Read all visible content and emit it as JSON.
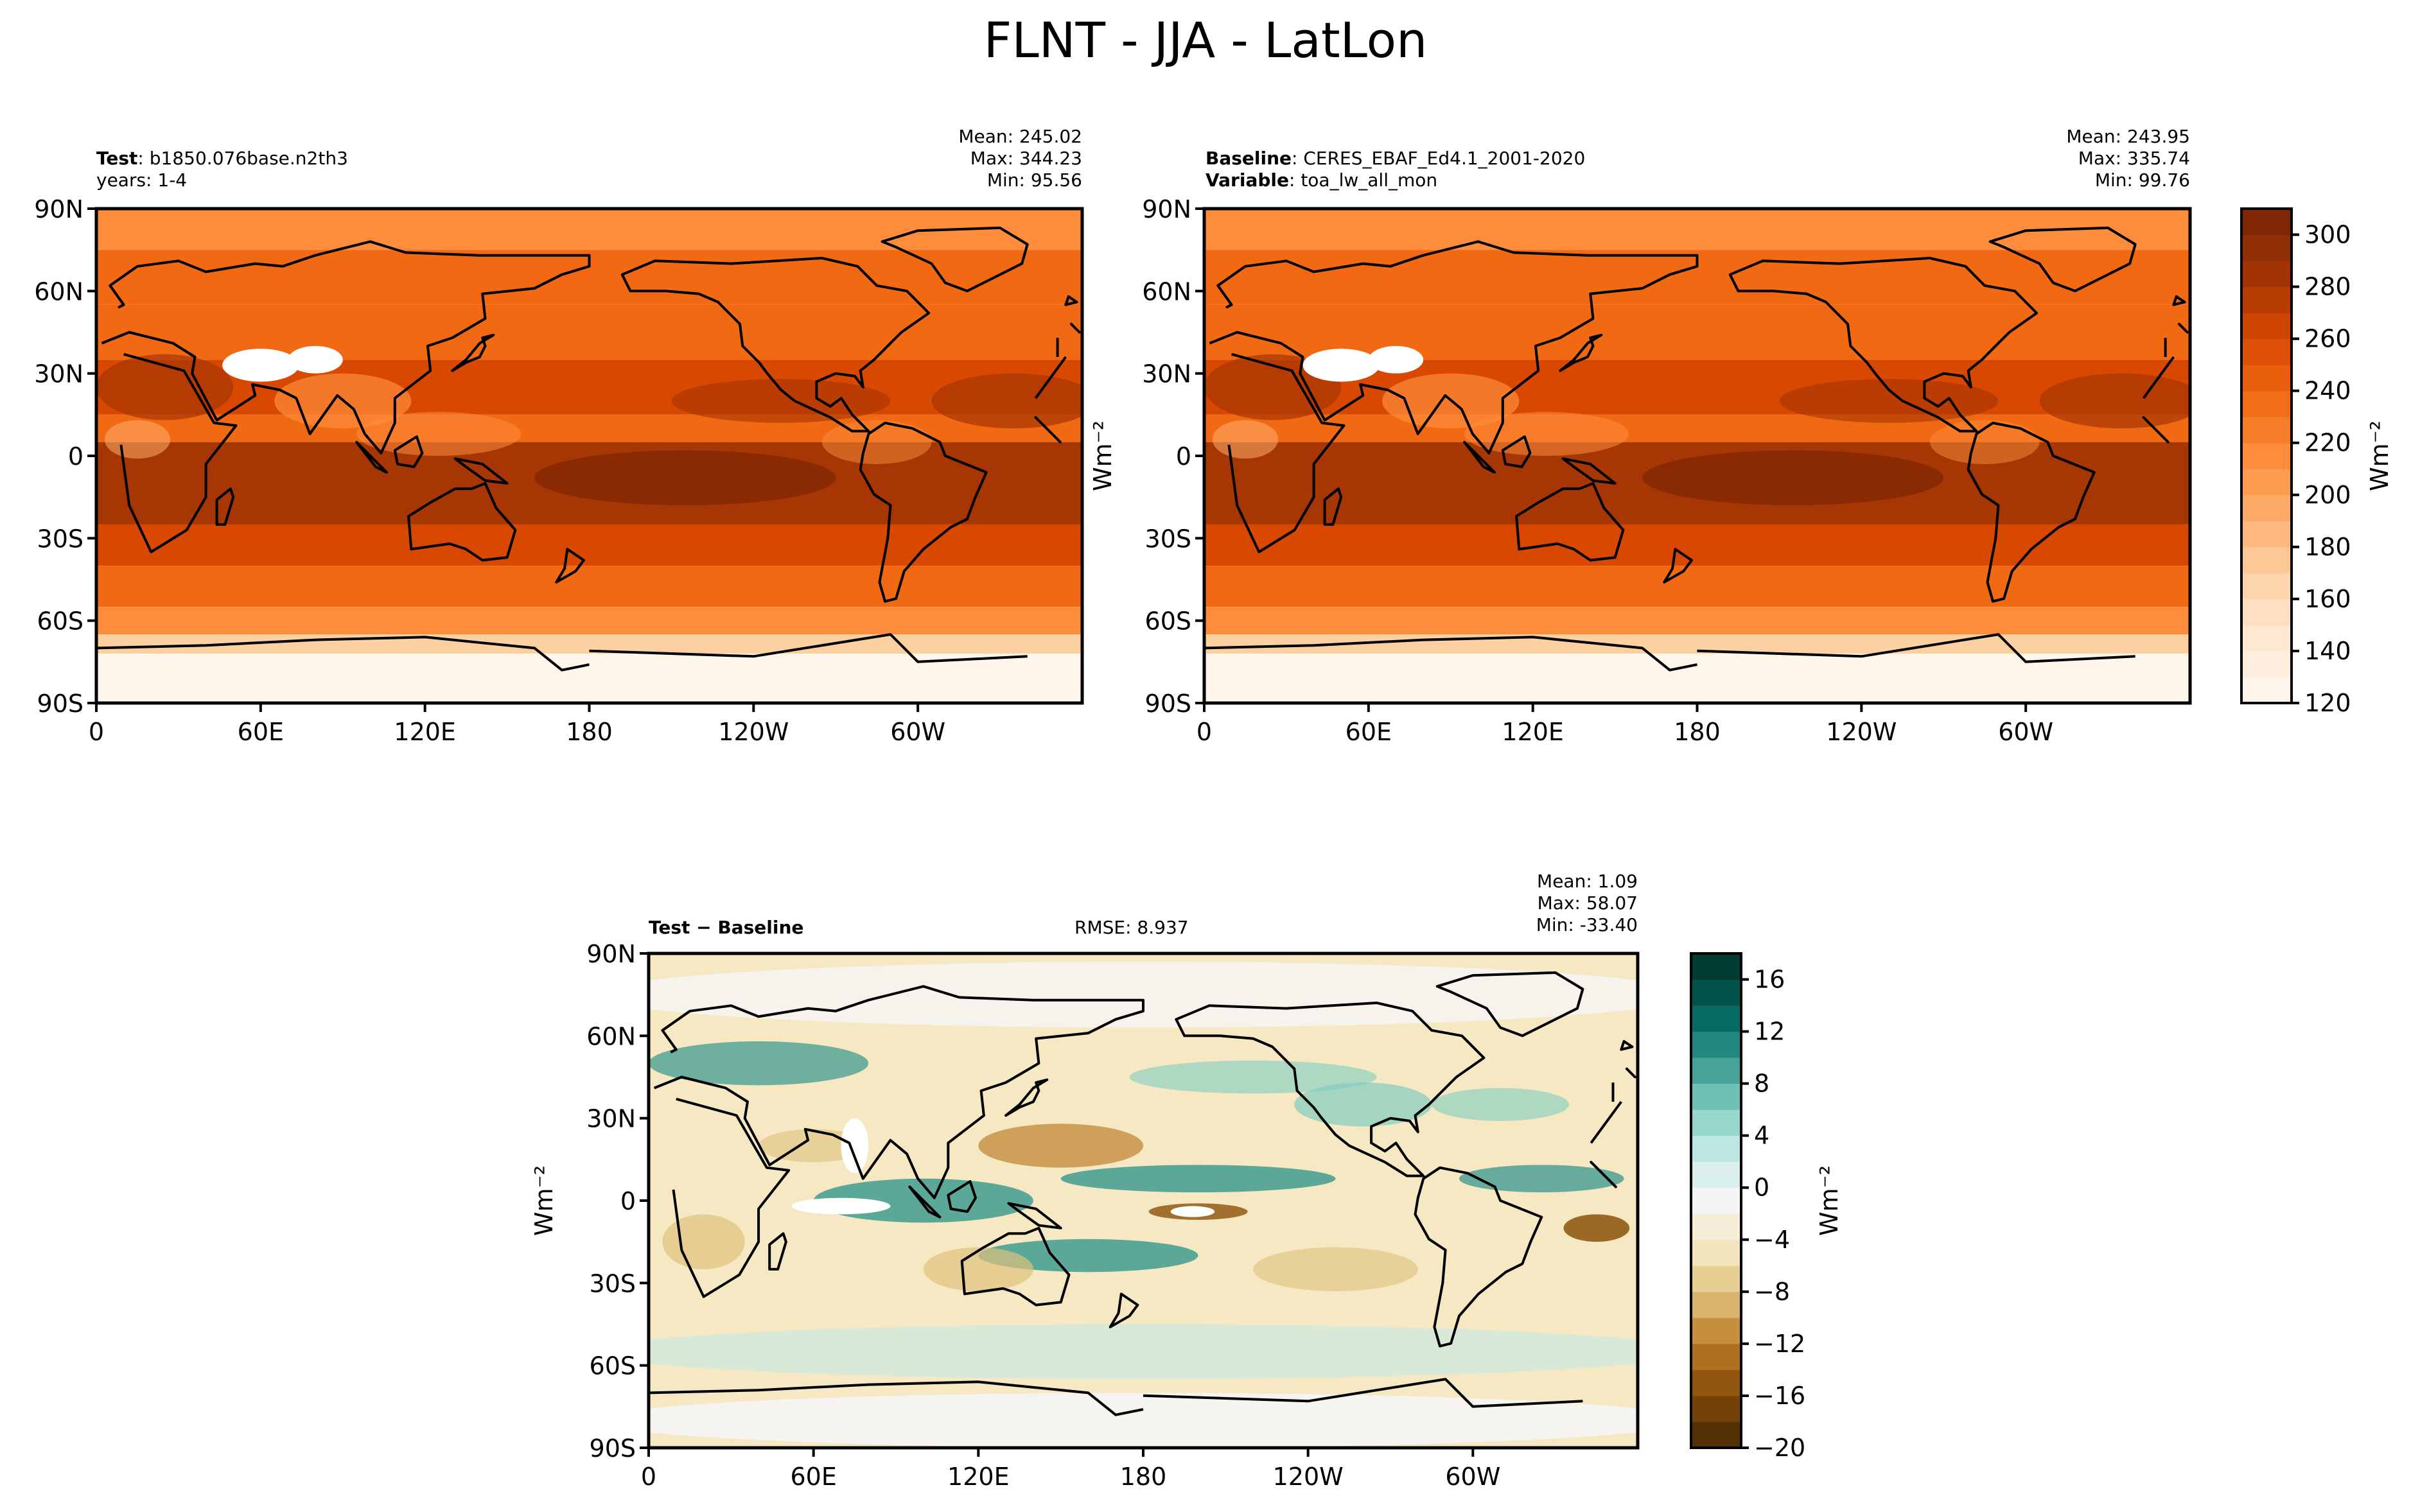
{
  "title": "FLNT - JJA - LatLon",
  "colors": {
    "orange_ramp": [
      "#fff5eb",
      "#fee6ce",
      "#fdd0a2",
      "#fdae6b",
      "#fd8d3c",
      "#f16913",
      "#d94801",
      "#a63603",
      "#7f2704"
    ],
    "diverge_ramp": [
      "#543005",
      "#8c510a",
      "#bf812d",
      "#dfc27d",
      "#f6e8c3",
      "#f5f5f5",
      "#c7eae5",
      "#80cdc1",
      "#35978f",
      "#01665e",
      "#003c30"
    ],
    "coast": "#000000",
    "missing": "#ffffff"
  },
  "panels": {
    "test": {
      "label_key": "Test",
      "label_value": "b1850.076base.n2th3",
      "label_line2": "years: 1-4",
      "mean": "Mean: 245.02",
      "max": "Max: 344.23",
      "min": "Min: 95.56"
    },
    "baseline": {
      "label_key": "Baseline",
      "label_value": "CERES_EBAF_Ed4.1_2001-2020",
      "label_key2": "Variable",
      "label_value2": "toa_lw_all_mon",
      "mean": "Mean: 243.95",
      "max": "Max: 335.74",
      "min": "Min: 99.76"
    },
    "diff": {
      "label": "Test − Baseline",
      "rmse": "RMSE: 8.937",
      "mean": "Mean:  1.09",
      "max": "Max: 58.07",
      "min": "Min: -33.40"
    }
  },
  "axes": {
    "lat_ticks": [
      "90N",
      "60N",
      "30N",
      "0",
      "30S",
      "60S",
      "90S"
    ],
    "lon_ticks": [
      "0",
      "60E",
      "120E",
      "180",
      "120W",
      "60W"
    ]
  },
  "colorbar_top": {
    "ticks": [
      "120",
      "140",
      "160",
      "180",
      "200",
      "220",
      "240",
      "260",
      "280",
      "300"
    ],
    "label": "Wm⁻²",
    "range": [
      120,
      310
    ]
  },
  "colorbar_diff": {
    "ticks": [
      "−20",
      "−16",
      "−12",
      "−8",
      "−4",
      "0",
      "4",
      "8",
      "12",
      "16"
    ],
    "label": "Wm⁻²",
    "range": [
      -20,
      18
    ]
  },
  "side_label": "Wm⁻²",
  "chart_data": [
    {
      "type": "heatmap",
      "title": "Test: b1850.076base.n2th3",
      "subtitle": "years: 1-4",
      "variable": "FLNT",
      "season": "JJA",
      "stats": {
        "mean": 245.02,
        "max": 344.23,
        "min": 95.56
      },
      "xlabel": "",
      "ylabel": "",
      "x_range": [
        0,
        360
      ],
      "y_range": [
        -90,
        90
      ],
      "colorbar_range": [
        120,
        310
      ],
      "colormap": "Oranges",
      "x_ticks": [
        "0",
        "60E",
        "120E",
        "180",
        "120W",
        "60W"
      ],
      "y_ticks": [
        "90N",
        "60N",
        "30N",
        "0",
        "30S",
        "60S",
        "90S"
      ]
    },
    {
      "type": "heatmap",
      "title": "Baseline: CERES_EBAF_Ed4.1_2001-2020",
      "subtitle": "Variable: toa_lw_all_mon",
      "stats": {
        "mean": 243.95,
        "max": 335.74,
        "min": 99.76
      },
      "xlabel": "",
      "ylabel": "",
      "x_range": [
        0,
        360
      ],
      "y_range": [
        -90,
        90
      ],
      "colorbar_range": [
        120,
        310
      ],
      "colormap": "Oranges",
      "x_ticks": [
        "0",
        "60E",
        "120E",
        "180",
        "120W",
        "60W"
      ],
      "y_ticks": [
        "90N",
        "60N",
        "30N",
        "0",
        "30S",
        "60S",
        "90S"
      ]
    },
    {
      "type": "heatmap",
      "title": "Test − Baseline",
      "stats": {
        "mean": 1.09,
        "max": 58.07,
        "min": -33.4,
        "rmse": 8.937
      },
      "xlabel": "",
      "ylabel": "Wm⁻²",
      "x_range": [
        0,
        360
      ],
      "y_range": [
        -90,
        90
      ],
      "colorbar_range": [
        -20,
        18
      ],
      "colormap": "BrBG",
      "x_ticks": [
        "0",
        "60E",
        "120E",
        "180",
        "120W",
        "60W"
      ],
      "y_ticks": [
        "90N",
        "60N",
        "30N",
        "0",
        "30S",
        "60S",
        "90S"
      ]
    }
  ]
}
